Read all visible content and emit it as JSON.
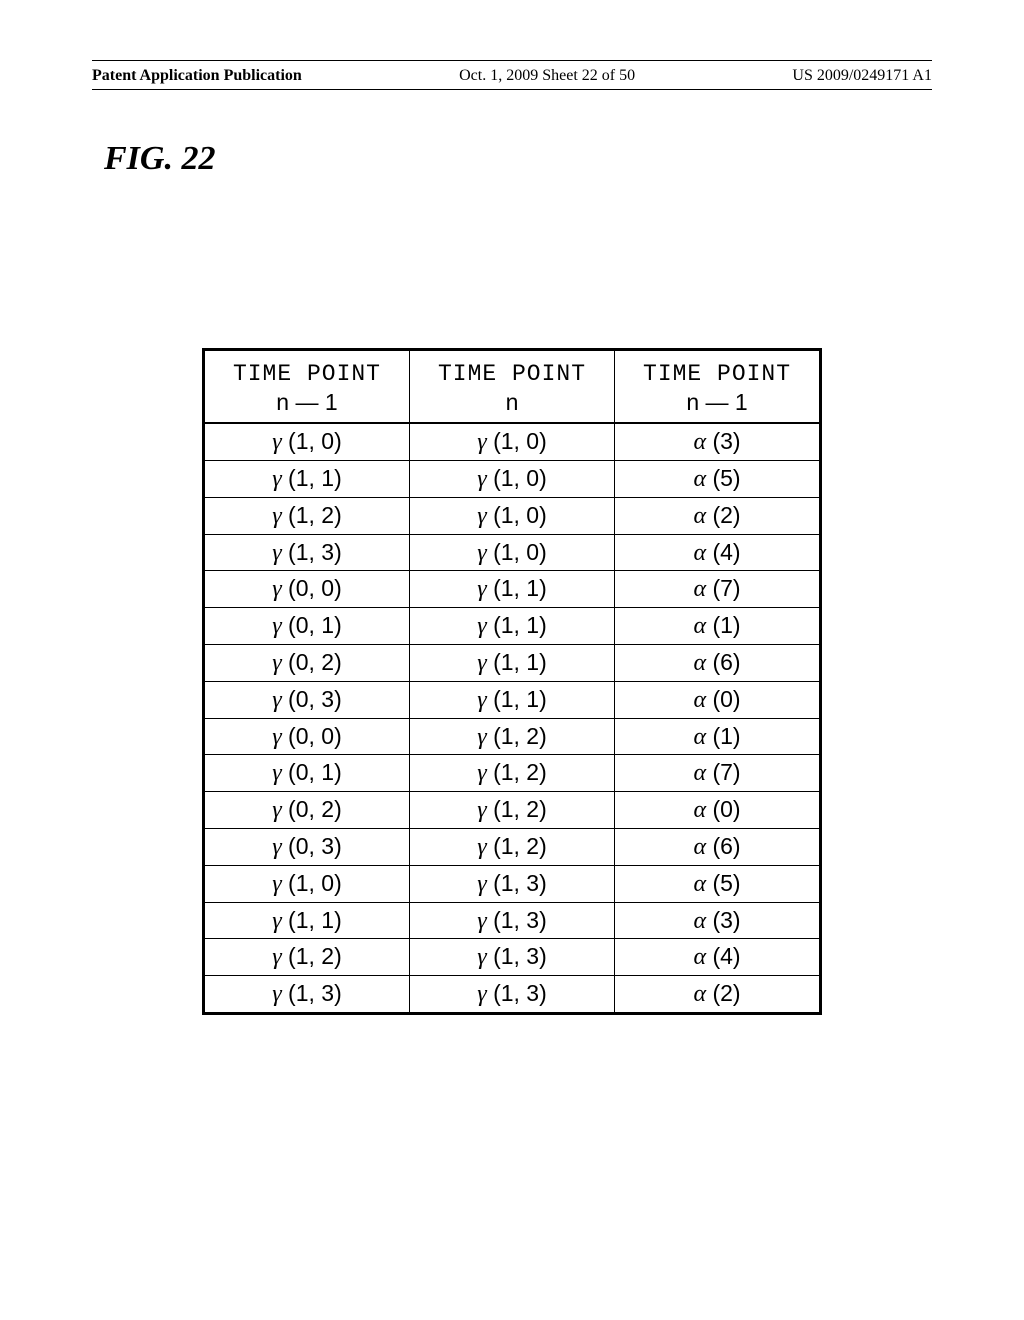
{
  "header": {
    "left": "Patent Application Publication",
    "center": "Oct. 1, 2009   Sheet 22 of 50",
    "right": "US 2009/0249171 A1"
  },
  "figure_label": "FIG. 22",
  "table": {
    "columns": [
      {
        "line1": "TIME POINT",
        "line2": "n — 1"
      },
      {
        "line1": "TIME POINT",
        "line2": "n"
      },
      {
        "line1": "TIME POINT",
        "line2": "n — 1"
      }
    ],
    "rows": [
      [
        "γ (1, 0)",
        "γ (1, 0)",
        "α (3)"
      ],
      [
        "γ (1, 1)",
        "γ (1, 0)",
        "α (5)"
      ],
      [
        "γ (1, 2)",
        "γ (1, 0)",
        "α (2)"
      ],
      [
        "γ (1, 3)",
        "γ (1, 0)",
        "α (4)"
      ],
      [
        "γ (0, 0)",
        "γ (1, 1)",
        "α (7)"
      ],
      [
        "γ (0, 1)",
        "γ (1, 1)",
        "α (1)"
      ],
      [
        "γ (0, 2)",
        "γ (1, 1)",
        "α (6)"
      ],
      [
        "γ (0, 3)",
        "γ (1, 1)",
        "α (0)"
      ],
      [
        "γ (0, 0)",
        "γ (1, 2)",
        "α (1)"
      ],
      [
        "γ (0, 1)",
        "γ (1, 2)",
        "α (7)"
      ],
      [
        "γ (0, 2)",
        "γ (1, 2)",
        "α (0)"
      ],
      [
        "γ (0, 3)",
        "γ (1, 2)",
        "α (6)"
      ],
      [
        "γ (1, 0)",
        "γ (1, 3)",
        "α (5)"
      ],
      [
        "γ (1, 1)",
        "γ (1, 3)",
        "α (3)"
      ],
      [
        "γ (1, 2)",
        "γ (1, 3)",
        "α (4)"
      ],
      [
        "γ (1, 3)",
        "γ (1, 3)",
        "α (2)"
      ]
    ]
  }
}
